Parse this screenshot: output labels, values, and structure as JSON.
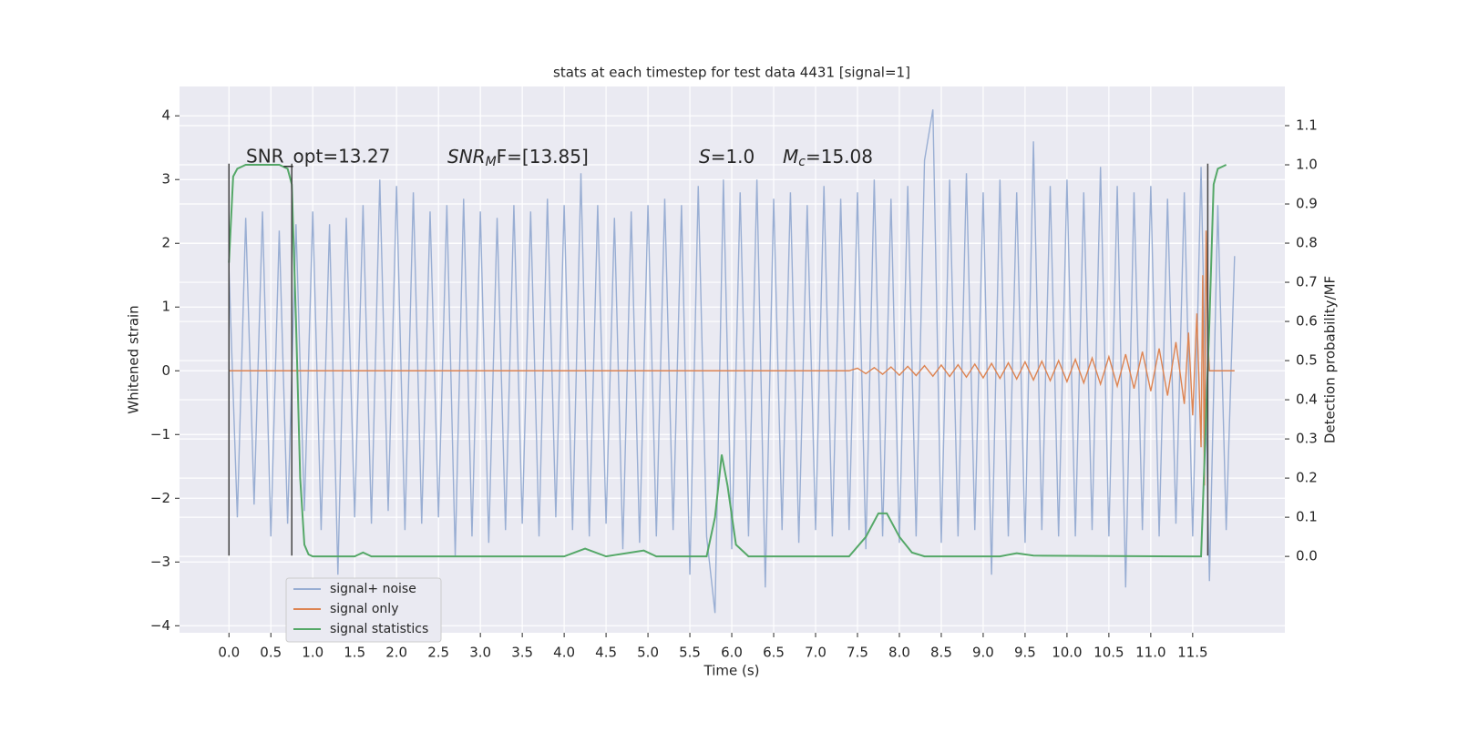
{
  "chart_data": {
    "type": "line",
    "title": "stats at each timestep for test data 4431 [signal=1]",
    "xlabel": "Time (s)",
    "ylabel": "Whitened strain",
    "y2label": "Detection probability/MF",
    "xlim": [
      -0.59,
      12.6
    ],
    "ylim": [
      -4.11,
      4.46
    ],
    "y2lim": [
      -0.195,
      1.2
    ],
    "xticks": [
      {
        "value": 0,
        "label": "0.0"
      },
      0.5,
      {
        "value": 1,
        "label": "1.0"
      },
      1.5,
      {
        "value": 2,
        "label": "2.0"
      },
      2.5,
      {
        "value": 3,
        "label": "3.0"
      },
      3.5,
      {
        "value": 4,
        "label": "4.0"
      },
      4.5,
      {
        "value": 5,
        "label": "5.0"
      },
      5.5,
      {
        "value": 6,
        "label": "6.0"
      },
      6.5,
      {
        "value": 7,
        "label": "7.0"
      },
      7.5,
      {
        "value": 8,
        "label": "8.0"
      },
      8.5,
      {
        "value": 9,
        "label": "9.0"
      },
      9.5,
      {
        "value": 10,
        "label": "10.0"
      },
      10.5,
      {
        "value": 11,
        "label": "11.0"
      },
      11.5
    ],
    "yticks": [
      {
        "value": -4,
        "label": "−4"
      },
      {
        "value": -3,
        "label": "−3"
      },
      {
        "value": -2,
        "label": "−2"
      },
      {
        "value": -1,
        "label": "−1"
      },
      0,
      1,
      2,
      3,
      4
    ],
    "y2ticks": [
      {
        "value": 0,
        "label": "0.0"
      },
      0.1,
      0.2,
      0.3,
      0.4,
      0.5,
      0.6,
      0.7,
      0.8,
      0.9,
      {
        "value": 1,
        "label": "1.0"
      },
      1.1
    ],
    "grid": true,
    "legend": "lower left",
    "series": [
      {
        "name": "signal+ noise",
        "color": "#99aed3",
        "x": [
          0,
          0.1,
          0.2,
          0.3,
          0.4,
          0.5,
          0.6,
          0.7,
          0.8,
          0.9,
          1.0,
          1.1,
          1.2,
          1.3,
          1.4,
          1.5,
          1.6,
          1.7,
          1.8,
          1.9,
          2.0,
          2.1,
          2.2,
          2.3,
          2.4,
          2.5,
          2.6,
          2.7,
          2.8,
          2.9,
          3.0,
          3.1,
          3.2,
          3.3,
          3.4,
          3.5,
          3.6,
          3.7,
          3.8,
          3.9,
          4.0,
          4.1,
          4.2,
          4.3,
          4.4,
          4.5,
          4.6,
          4.7,
          4.8,
          4.9,
          5.0,
          5.1,
          5.2,
          5.3,
          5.4,
          5.5,
          5.6,
          5.7,
          5.8,
          5.9,
          6.0,
          6.1,
          6.2,
          6.3,
          6.4,
          6.5,
          6.6,
          6.7,
          6.8,
          6.9,
          7.0,
          7.1,
          7.2,
          7.3,
          7.4,
          7.5,
          7.6,
          7.7,
          7.8,
          7.9,
          8.0,
          8.1,
          8.2,
          8.3,
          8.4,
          8.5,
          8.6,
          8.7,
          8.8,
          8.9,
          9.0,
          9.1,
          9.2,
          9.3,
          9.4,
          9.5,
          9.6,
          9.7,
          9.8,
          9.9,
          10.0,
          10.1,
          10.2,
          10.3,
          10.4,
          10.5,
          10.6,
          10.7,
          10.8,
          10.9,
          11.0,
          11.1,
          11.2,
          11.3,
          11.4,
          11.5,
          11.6,
          11.7,
          11.8,
          11.9,
          12.0
        ],
        "values": [
          1.6,
          -2.3,
          2.4,
          -2.1,
          2.5,
          -2.6,
          2.2,
          -2.4,
          2.3,
          -2.2,
          2.5,
          -2.5,
          2.3,
          -3.2,
          2.4,
          -2.3,
          2.6,
          -2.4,
          3.0,
          -2.2,
          2.9,
          -2.5,
          2.8,
          -2.4,
          2.5,
          -2.3,
          2.6,
          -2.9,
          2.7,
          -2.6,
          2.5,
          -2.7,
          2.4,
          -2.5,
          2.6,
          -2.4,
          2.5,
          -2.6,
          2.7,
          -2.3,
          2.6,
          -2.5,
          3.1,
          -2.6,
          2.6,
          -2.4,
          2.4,
          -2.8,
          2.5,
          -2.7,
          2.6,
          -2.6,
          2.7,
          -2.5,
          2.6,
          -3.2,
          2.9,
          -2.6,
          -3.8,
          3.0,
          -2.8,
          2.8,
          -2.6,
          3.0,
          -3.4,
          2.7,
          -2.5,
          2.8,
          -2.7,
          2.6,
          -2.5,
          2.9,
          -2.6,
          2.7,
          -2.5,
          2.8,
          -2.8,
          3.0,
          -2.6,
          2.7,
          -2.7,
          2.9,
          -2.6,
          3.3,
          4.1,
          -2.7,
          3.0,
          -2.6,
          3.1,
          -2.5,
          2.8,
          -3.2,
          3.0,
          -2.6,
          2.8,
          -2.7,
          3.6,
          -2.5,
          2.9,
          -2.6,
          3.0,
          -2.6,
          2.8,
          -2.5,
          3.2,
          -2.6,
          2.9,
          -3.4,
          2.8,
          -2.5,
          2.9,
          -2.6,
          2.7,
          -2.4,
          2.8,
          -2.6,
          3.2,
          -3.3,
          2.6,
          -2.5,
          1.8
        ]
      },
      {
        "name": "signal only",
        "color": "#dd8452",
        "x": [
          0,
          7.4,
          7.5,
          7.6,
          7.7,
          7.8,
          7.9,
          8.0,
          8.1,
          8.2,
          8.3,
          8.4,
          8.5,
          8.6,
          8.7,
          8.8,
          8.9,
          9.0,
          9.1,
          9.2,
          9.3,
          9.4,
          9.5,
          9.6,
          9.7,
          9.8,
          9.9,
          10.0,
          10.1,
          10.2,
          10.3,
          10.4,
          10.5,
          10.6,
          10.7,
          10.8,
          10.9,
          11.0,
          11.1,
          11.2,
          11.3,
          11.4,
          11.45,
          11.5,
          11.55,
          11.6,
          11.62,
          11.64,
          11.66,
          11.68,
          11.7,
          12.0
        ],
        "values": [
          0,
          0,
          0.04,
          -0.045,
          0.05,
          -0.055,
          0.06,
          -0.07,
          0.07,
          -0.075,
          0.08,
          -0.085,
          0.09,
          -0.09,
          0.095,
          -0.1,
          0.105,
          -0.11,
          0.115,
          -0.12,
          0.125,
          -0.13,
          0.14,
          -0.145,
          0.15,
          -0.155,
          0.16,
          -0.17,
          0.18,
          -0.19,
          0.2,
          -0.21,
          0.22,
          -0.24,
          0.26,
          -0.28,
          0.3,
          -0.32,
          0.35,
          -0.39,
          0.45,
          -0.52,
          0.6,
          -0.7,
          0.9,
          -1.2,
          1.5,
          -1.8,
          2.2,
          0.5,
          0,
          0
        ]
      },
      {
        "name": "signal statistics",
        "color": "#55a868",
        "axis": "y2",
        "x": [
          0,
          0.05,
          0.1,
          0.2,
          0.4,
          0.6,
          0.7,
          0.75,
          0.8,
          0.85,
          0.9,
          0.95,
          1.0,
          1.5,
          1.6,
          1.7,
          4.0,
          4.25,
          4.5,
          4.95,
          5.1,
          5.7,
          5.8,
          5.88,
          5.95,
          6.05,
          6.2,
          7.4,
          7.6,
          7.75,
          7.85,
          8.0,
          8.15,
          8.3,
          9.2,
          9.4,
          9.6,
          11.5,
          11.6,
          11.65,
          11.7,
          11.75,
          11.8,
          11.9
        ],
        "values": [
          0.75,
          0.97,
          0.99,
          1.0,
          1.0,
          1.0,
          0.99,
          0.95,
          0.6,
          0.2,
          0.03,
          0.005,
          0.0,
          0.0,
          0.01,
          0.0,
          0.0,
          0.02,
          0.0,
          0.015,
          0.0,
          0.0,
          0.1,
          0.26,
          0.18,
          0.03,
          0.0,
          0.0,
          0.05,
          0.11,
          0.11,
          0.05,
          0.01,
          0.0,
          0.0,
          0.008,
          0.002,
          0.0,
          0.0,
          0.3,
          0.6,
          0.95,
          0.99,
          1.0
        ]
      }
    ],
    "vlines": {
      "x": [
        0.0,
        0.75,
        11.68
      ],
      "ymin": -2.9,
      "ymax": 3.25,
      "color": "#444444"
    },
    "annotations": [
      {
        "text": "SNR_opt=13.27"
      },
      {
        "main": "SNR",
        "sub": "M",
        "rest": "F=[13.85]"
      },
      {
        "main": "S",
        "rest": "=1.0"
      },
      {
        "main": "M",
        "sub": "c",
        "rest": "=15.08"
      }
    ]
  }
}
